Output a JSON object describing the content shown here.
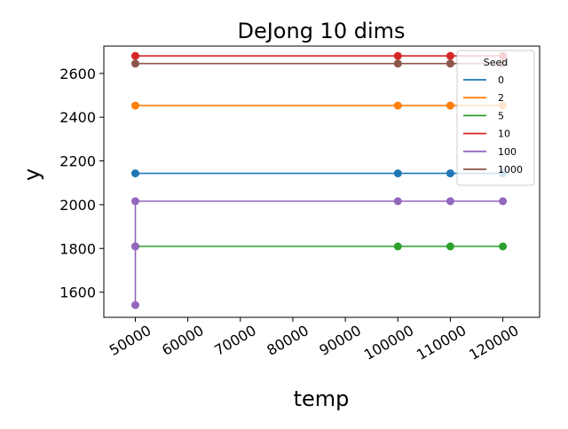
{
  "chart_data": {
    "type": "line",
    "title": "DeJong 10 dims",
    "xlabel": "temp",
    "ylabel": "y",
    "xlim": [
      44000,
      127000
    ],
    "ylim": [
      1485,
      2725
    ],
    "xticks": [
      50000,
      60000,
      70000,
      80000,
      90000,
      100000,
      110000,
      120000
    ],
    "yticks": [
      1600,
      1800,
      2000,
      2200,
      2400,
      2600
    ],
    "grid": false,
    "legend": {
      "title": "Seed",
      "position": "top-right"
    },
    "series": [
      {
        "name": "0",
        "color": "#1f77b4",
        "x": [
          50000,
          100000,
          110000,
          120000
        ],
        "y": [
          2143,
          2143,
          2143,
          2143
        ]
      },
      {
        "name": "2",
        "color": "#ff7f0e",
        "x": [
          50000,
          100000,
          110000,
          120000
        ],
        "y": [
          2453,
          2453,
          2453,
          2453
        ]
      },
      {
        "name": "5",
        "color": "#2ca02c",
        "x": [
          50000,
          100000,
          110000,
          120000
        ],
        "y": [
          1809,
          1809,
          1809,
          1809
        ]
      },
      {
        "name": "10",
        "color": "#d62728",
        "x": [
          50000,
          100000,
          110000,
          120000
        ],
        "y": [
          2680,
          2680,
          2680,
          2680
        ]
      },
      {
        "name": "100",
        "color": "#9467bd",
        "x": [
          50000,
          50000,
          50000,
          100000,
          110000,
          120000
        ],
        "y": [
          1541,
          1809,
          2016,
          2016,
          2016,
          2016
        ]
      },
      {
        "name": "1000",
        "color": "#8c564b",
        "x": [
          50000,
          100000,
          110000,
          120000
        ],
        "y": [
          2645,
          2645,
          2645,
          2645
        ]
      }
    ]
  }
}
